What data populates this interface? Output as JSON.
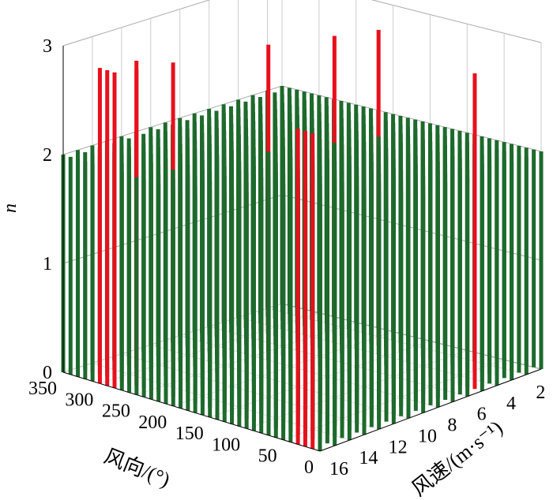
{
  "chart_data": {
    "type": "bar3d",
    "zlabel": "n",
    "xlabel": "风向/(°)",
    "ylabel": "风速/(m·s⁻¹)",
    "z_ticks": [
      "0",
      "1",
      "2",
      "3"
    ],
    "zlim": [
      0,
      3
    ],
    "x_ticks": [
      350,
      300,
      250,
      200,
      150,
      100,
      50,
      0
    ],
    "y_ticks": [
      2,
      4,
      6,
      8,
      10,
      12,
      14,
      16
    ],
    "directions_step": 10,
    "directions_range": [
      0,
      350
    ],
    "speeds_range": [
      1,
      16
    ],
    "default_value": 2,
    "highlight_value": 2.9,
    "highlight_points": [
      {
        "dir": 300,
        "speed": 16
      },
      {
        "dir": 290,
        "speed": 16
      },
      {
        "dir": 280,
        "speed": 16
      },
      {
        "dir": 270,
        "speed": 15
      },
      {
        "dir": 290,
        "speed": 14
      },
      {
        "dir": 260,
        "speed": 13
      },
      {
        "dir": 230,
        "speed": 8
      },
      {
        "dir": 200,
        "speed": 5
      },
      {
        "dir": 180,
        "speed": 3
      },
      {
        "dir": 30,
        "speed": 16
      },
      {
        "dir": 20,
        "speed": 16
      },
      {
        "dir": 10,
        "speed": 16
      },
      {
        "dir": 10,
        "speed": 5
      }
    ],
    "colors": {
      "default": "#1d6a2c",
      "highlight": "#e8101c"
    }
  }
}
